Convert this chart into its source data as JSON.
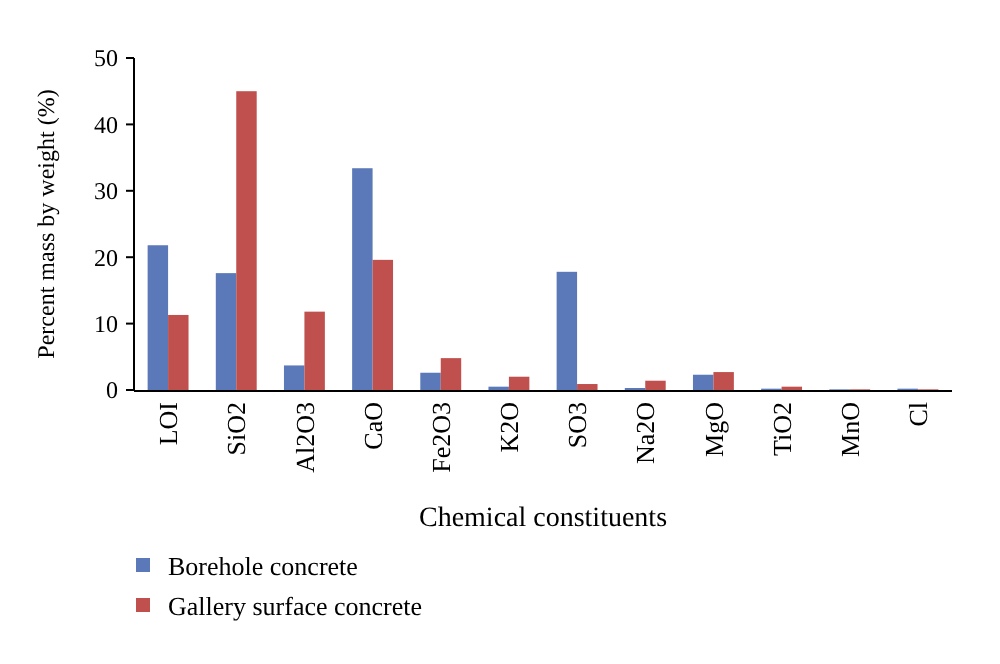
{
  "chart_data": {
    "type": "bar",
    "xlabel": "Chemical constituents",
    "ylabel": "Percent mass by weight (%)",
    "categories": [
      "LOI",
      "SiO2",
      "Al2O3",
      "CaO",
      "Fe2O3",
      "K2O",
      "SO3",
      "Na2O",
      "MgO",
      "TiO2",
      "MnO",
      "Cl"
    ],
    "series": [
      {
        "name": "Borehole concrete",
        "color": "#5b79b8",
        "values": [
          21.8,
          17.6,
          3.7,
          33.4,
          2.6,
          0.5,
          17.8,
          0.3,
          2.3,
          0.2,
          0.1,
          0.2
        ]
      },
      {
        "name": "Gallery surface concrete",
        "color": "#c0504d",
        "values": [
          11.3,
          45,
          11.8,
          19.6,
          4.8,
          2.0,
          0.9,
          1.4,
          2.7,
          0.5,
          0.1,
          0.1
        ]
      }
    ],
    "ylim": [
      0,
      50
    ],
    "yticks": [
      0,
      10,
      20,
      30,
      40,
      50
    ],
    "grid": false,
    "legend": "bottom left"
  }
}
